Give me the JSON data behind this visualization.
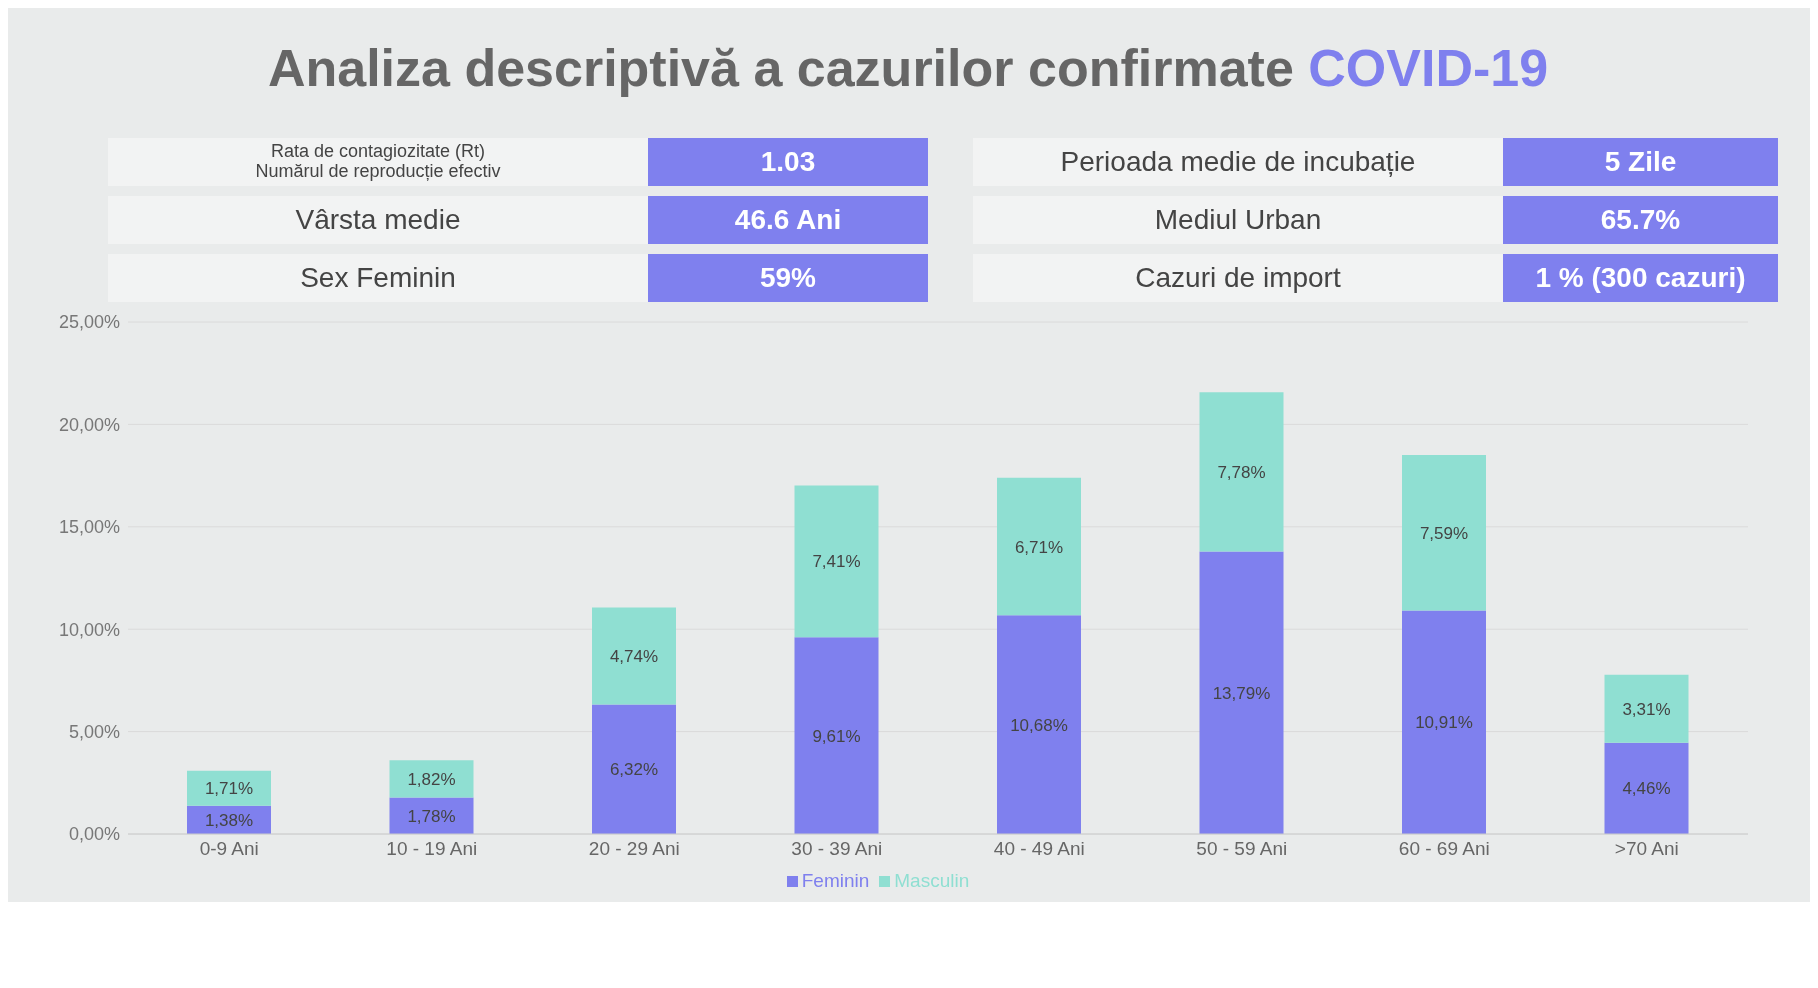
{
  "chart_data": [
    {
      "type": "other",
      "title": "Analiza descriptivă a cazurilor confirmate COVID-19",
      "annotations": [
        "Rata de contagiozitate (Rt)\nNumărul de reproducție efectiv",
        "1.03",
        "Perioada medie de incubație",
        "5 Zile",
        "Vârsta medie",
        "46.6  Ani",
        "Mediul Urban",
        "65.7%",
        "Sex Feminin",
        "59%",
        "Cazuri de import",
        "1 % (300 cazuri)"
      ]
    },
    {
      "type": "bar",
      "stacked": true,
      "categories": [
        "0-9 Ani",
        "10 - 19 Ani",
        "20 - 29 Ani",
        "30 - 39 Ani",
        "40 - 49 Ani",
        "50 - 59 Ani",
        "60 - 69 Ani",
        ">70 Ani"
      ],
      "series": [
        {
          "name": "Feminin",
          "color": "#7f80ee",
          "values": [
            1.38,
            1.78,
            6.32,
            9.61,
            10.68,
            13.79,
            10.91,
            4.46
          ],
          "value_labels": [
            "1,38%",
            "1,78%",
            "6,32%",
            "9,61%",
            "10,68%",
            "13,79%",
            "10,91%",
            "4,46%"
          ]
        },
        {
          "name": "Masculin",
          "color": "#8fdfd2",
          "values": [
            1.71,
            1.82,
            4.74,
            7.41,
            6.71,
            7.78,
            7.59,
            3.31
          ],
          "value_labels": [
            "1,71%",
            "1,82%",
            "4,74%",
            "7,41%",
            "6,71%",
            "7,78%",
            "7,59%",
            "3,31%"
          ]
        }
      ],
      "ylim": [
        0,
        25
      ],
      "yticks": [
        {
          "value": 0,
          "label": "0,00%"
        },
        {
          "value": 5,
          "label": "5,00%"
        },
        {
          "value": 10,
          "label": "10,00%"
        },
        {
          "value": 15,
          "label": "15,00%"
        },
        {
          "value": 20,
          "label": "20,00%"
        },
        {
          "value": 25,
          "label": "25,00%"
        }
      ],
      "grid": "y",
      "legend": "bottom"
    }
  ]
}
